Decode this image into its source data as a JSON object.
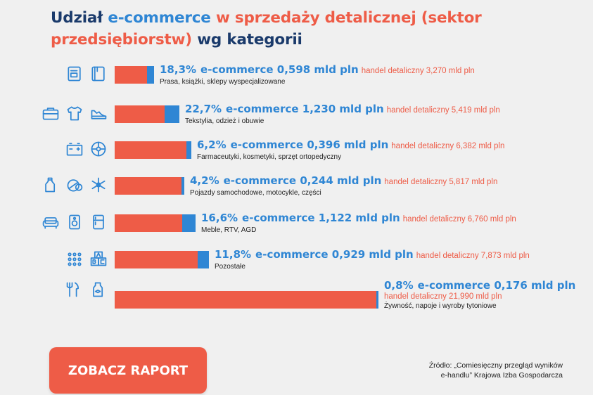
{
  "title": {
    "part1": "Udział ",
    "part2": "e-commerce",
    "part3": " w sprzedaży detalicznej (sektor przedsiębiorstw)",
    "part4": " wg kategorii"
  },
  "chart_data": {
    "type": "bar",
    "orientation": "horizontal",
    "stacked": true,
    "unit": "mld pln",
    "categories": [
      "Prasa, książki, sklepy wyspecjalizowane",
      "Tekstylia, odzież i obuwie",
      "Farmaceutyki, kosmetyki, sprzęt ortopedyczny",
      "Pojazdy samochodowe, motocykle, części",
      "Meble, RTV, AGD",
      "Pozostałe",
      "Żywność, napoje i wyroby tytoniowe"
    ],
    "series": [
      {
        "name": "e-commerce",
        "color": "#2f86d4",
        "values": [
          0.598,
          1.23,
          0.396,
          0.244,
          1.122,
          0.929,
          0.176
        ]
      },
      {
        "name": "handel detaliczny",
        "color": "#ee5c47",
        "values": [
          3.27,
          5.419,
          6.382,
          5.817,
          6.76,
          7.873,
          21.99
        ]
      }
    ],
    "share_pct": [
      18.3,
      22.7,
      6.2,
      4.2,
      16.6,
      11.8,
      0.8
    ],
    "rows": [
      {
        "pct": "18,3%",
        "ecom": "e-commerce 0,598 mld pln",
        "retail": "handel detaliczny 3,270 mld pln",
        "category": "Prasa, książki, sklepy wyspecjalizowane",
        "icons": [
          "notebook-icon",
          "book-icon"
        ],
        "total": 3.27,
        "ecom_value": 0.598
      },
      {
        "pct": "22,7%",
        "ecom": "e-commerce 1,230 mld pln",
        "retail": "handel detaliczny 5,419 mld pln",
        "category": "Tekstylia, odzież i obuwie",
        "icons": [
          "briefcase-icon",
          "tshirt-icon",
          "shoe-icon"
        ],
        "total": 5.419,
        "ecom_value": 1.23
      },
      {
        "pct": "6,2%",
        "ecom": "e-commerce 0,396 mld pln",
        "retail": "handel detaliczny 6,382 mld pln",
        "category": "Farmaceutyki, kosmetyki, sprzęt ortopedyczny",
        "icons": [
          "battery-icon",
          "wheel-icon"
        ],
        "total": 6.382,
        "ecom_value": 0.396
      },
      {
        "pct": "4,2%",
        "ecom": "e-commerce 0,244 mld pln",
        "retail": "handel detaliczny 5,817 mld pln",
        "category": "Pojazdy samochodowe, motocykle, części",
        "icons": [
          "bottle-icon",
          "pills-icon",
          "snowflake-icon"
        ],
        "total": 5.817,
        "ecom_value": 0.244
      },
      {
        "pct": "16,6%",
        "ecom": "e-commerce 1,122 mld pln",
        "retail": "handel detaliczny 6,760 mld pln",
        "category": "Meble, RTV, AGD",
        "icons": [
          "sofa-icon",
          "speaker-icon",
          "fridge-icon"
        ],
        "total": 6.76,
        "ecom_value": 1.122
      },
      {
        "pct": "11,8%",
        "ecom": "e-commerce 0,929 mld pln",
        "retail": "handel detaliczny 7,873 mld pln",
        "category": "Pozostałe",
        "icons": [
          "dots-grid-icon",
          "abc-blocks-icon"
        ],
        "total": 7.873,
        "ecom_value": 0.929
      },
      {
        "pct": "0,8%",
        "ecom": "e-commerce 0,176 mld pln",
        "retail": "handel detaliczny 21,990 mld pln",
        "category": "Żywność, napoje i wyroby tytoniowe",
        "icons": [
          "cutlery-icon",
          "milk-bottle-icon"
        ],
        "total": 21.99,
        "ecom_value": 0.176
      }
    ]
  },
  "cta": {
    "label": "ZOBACZ RAPORT"
  },
  "source": {
    "line1": "Źródło: „Comiesięczny przegląd wyników",
    "line2": "e-handlu” Krajowa Izba Gospodarcza"
  },
  "colors": {
    "primary_blue": "#2f86d4",
    "dark_blue": "#1a3a6b",
    "accent_red": "#ee5c47",
    "background": "#f0f0f0"
  }
}
